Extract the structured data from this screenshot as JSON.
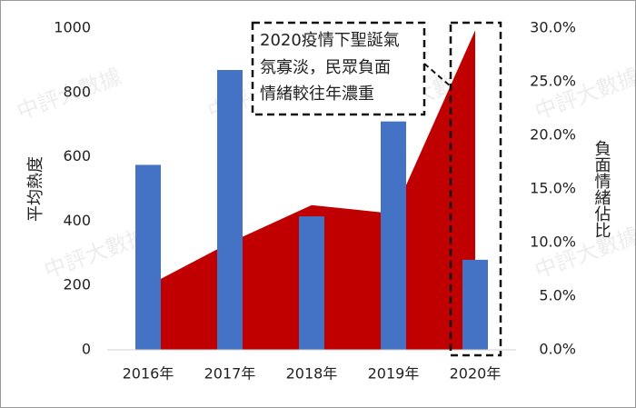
{
  "chart_data": {
    "type": "bar-area",
    "categories": [
      "2016年",
      "2017年",
      "2018年",
      "2019年",
      "2020年"
    ],
    "series": [
      {
        "name": "平均熱度",
        "type": "bar",
        "color": "#4472c4",
        "values": [
          575,
          870,
          415,
          710,
          280
        ]
      },
      {
        "name": "負面情緒佔比",
        "type": "area",
        "axis": "y2",
        "color": "#c00000",
        "values": [
          6.0,
          10.0,
          13.5,
          12.7,
          29.8
        ]
      }
    ],
    "ylabel": "平均熱度",
    "y2label": "負面情緒佔比",
    "ylim": [
      0,
      1000
    ],
    "yticks": [
      0,
      200,
      400,
      600,
      800,
      1000
    ],
    "y2lim": [
      0,
      30
    ],
    "y2ticks": [
      {
        "value": 0,
        "label": "0.0%"
      },
      {
        "value": 5,
        "label": "5.0%"
      },
      {
        "value": 10,
        "label": "10.0%"
      },
      {
        "value": 15,
        "label": "15.0%"
      },
      {
        "value": 20,
        "label": "20.0%"
      },
      {
        "value": 25,
        "label": "25.0%"
      },
      {
        "value": 30,
        "label": "30.0%"
      }
    ],
    "annotation": [
      "2020疫情下聖誕氣",
      "氛寡淡，民眾負面",
      "情緒較往年濃重"
    ],
    "watermark": "中評大數據"
  }
}
